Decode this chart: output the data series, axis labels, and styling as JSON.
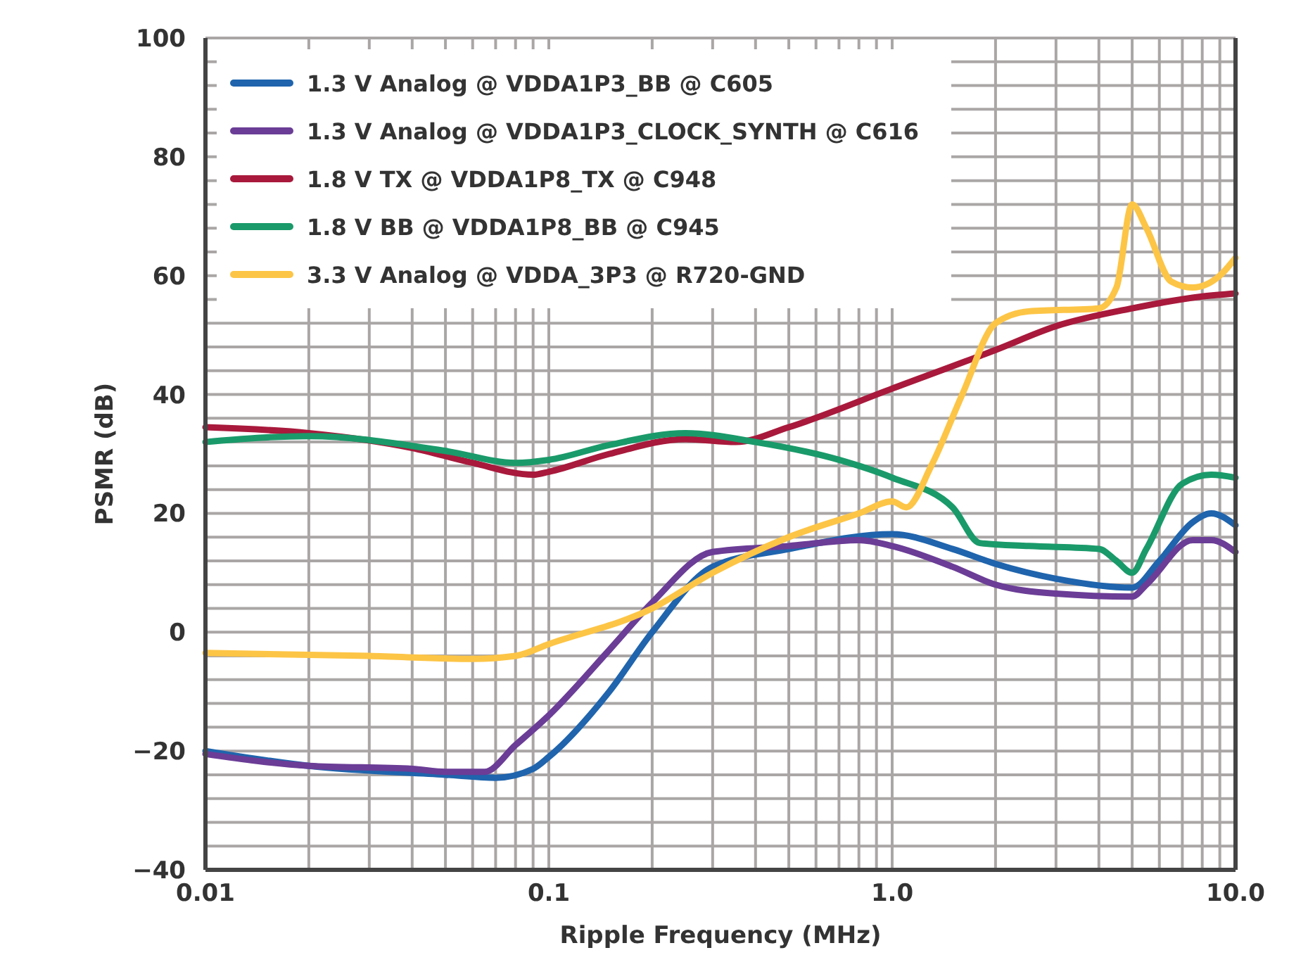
{
  "chart_data": {
    "type": "line",
    "xlabel": "Ripple Frequency (MHz)",
    "ylabel": "PSMR (dB)",
    "log": "x",
    "grid": true,
    "legend": "top left",
    "line_style": "solid",
    "marker": "none",
    "xlim": [
      0.01,
      10
    ],
    "ylim": [
      -40,
      100
    ],
    "xticks": [
      0.01,
      {
        "value": 0.02,
        "label": null
      },
      {
        "value": 0.03,
        "label": null
      },
      {
        "value": 0.04,
        "label": null
      },
      {
        "value": 0.05,
        "label": null
      },
      {
        "value": 0.06,
        "label": null
      },
      {
        "value": 0.07,
        "label": null
      },
      {
        "value": 0.08,
        "label": null
      },
      {
        "value": 0.09,
        "label": null
      },
      0.1,
      {
        "value": 0.2,
        "label": null
      },
      {
        "value": 0.3,
        "label": null
      },
      {
        "value": 0.4,
        "label": null
      },
      {
        "value": 0.5,
        "label": null
      },
      {
        "value": 0.6,
        "label": null
      },
      {
        "value": 0.7,
        "label": null
      },
      {
        "value": 0.8,
        "label": null
      },
      {
        "value": 0.9,
        "label": null
      },
      {
        "value": 1,
        "label": "1.0"
      },
      {
        "value": 2,
        "label": null
      },
      {
        "value": 3,
        "label": null
      },
      {
        "value": 4,
        "label": null
      },
      {
        "value": 5,
        "label": null
      },
      {
        "value": 6,
        "label": null
      },
      {
        "value": 7,
        "label": null
      },
      {
        "value": 8,
        "label": null
      },
      {
        "value": 9,
        "label": null
      },
      {
        "value": 10,
        "label": "10.0"
      }
    ],
    "yticks": [
      {
        "value": -40,
        "label": "−40"
      },
      {
        "value": -36,
        "label": null
      },
      {
        "value": -32,
        "label": null
      },
      {
        "value": -28,
        "label": null
      },
      {
        "value": -24,
        "label": null
      },
      {
        "value": -20,
        "label": "−20"
      },
      {
        "value": -16,
        "label": null
      },
      {
        "value": -12,
        "label": null
      },
      {
        "value": -8,
        "label": null
      },
      {
        "value": -4,
        "label": null
      },
      0,
      {
        "value": 4,
        "label": null
      },
      {
        "value": 8,
        "label": null
      },
      {
        "value": 12,
        "label": null
      },
      {
        "value": 16,
        "label": null
      },
      20,
      {
        "value": 24,
        "label": null
      },
      {
        "value": 28,
        "label": null
      },
      {
        "value": 32,
        "label": null
      },
      {
        "value": 36,
        "label": null
      },
      40,
      {
        "value": 44,
        "label": null
      },
      {
        "value": 48,
        "label": null
      },
      {
        "value": 52,
        "label": null
      },
      {
        "value": 56,
        "label": null
      },
      60,
      {
        "value": 64,
        "label": null
      },
      {
        "value": 68,
        "label": null
      },
      {
        "value": 72,
        "label": null
      },
      {
        "value": 76,
        "label": null
      },
      80,
      {
        "value": 84,
        "label": null
      },
      {
        "value": 88,
        "label": null
      },
      {
        "value": 92,
        "label": null
      },
      {
        "value": 96,
        "label": null
      },
      100
    ],
    "series": [
      {
        "name": "1.3 V Analog @ VDDA1P3_BB @ C605",
        "color": "#1f64ad",
        "x": [
          0.01,
          0.02,
          0.05,
          0.07,
          0.09,
          0.1,
          0.15,
          0.2,
          0.3,
          0.5,
          1,
          1.5,
          2,
          3,
          5,
          6,
          7.5,
          8.5,
          10
        ],
        "values": [
          -20,
          -22.5,
          -24,
          -24.5,
          -23,
          -21,
          -10,
          0,
          11,
          14,
          16.5,
          14,
          11.5,
          9,
          7.5,
          12,
          18.5,
          20,
          18
        ]
      },
      {
        "name": "1.3 V Analog @ VDDA1P3_CLOCK_SYNTH @ C616",
        "color": "#6b3d96",
        "x": [
          0.01,
          0.02,
          0.04,
          0.05,
          0.065,
          0.08,
          0.1,
          0.15,
          0.2,
          0.3,
          0.5,
          0.8,
          1,
          1.5,
          2,
          3,
          5,
          5.5,
          7.5,
          8.5,
          10
        ],
        "values": [
          -20.5,
          -22.5,
          -23,
          -23.5,
          -23.5,
          -19,
          -14,
          -3,
          5,
          13.5,
          14.5,
          15.5,
          14.5,
          11,
          8,
          6.5,
          6,
          8,
          15.5,
          15.5,
          13.5
        ]
      },
      {
        "name": "1.8 V TX @ VDDA1P8_TX @ C948",
        "color": "#a8193b",
        "x": [
          0.01,
          0.02,
          0.04,
          0.06,
          0.09,
          0.1,
          0.15,
          0.25,
          0.35,
          0.5,
          1,
          2,
          3,
          5,
          8,
          10
        ],
        "values": [
          34.5,
          33.5,
          31,
          28.5,
          26.5,
          27,
          30,
          32.5,
          32,
          34.5,
          41,
          47.5,
          51.5,
          54.5,
          56.5,
          57
        ]
      },
      {
        "name": "1.8 V BB @ VDDA1P8_BB @ C945",
        "color": "#1a9a6a",
        "x": [
          0.01,
          0.02,
          0.05,
          0.08,
          0.1,
          0.15,
          0.25,
          0.4,
          0.7,
          1,
          1.5,
          1.8,
          2.5,
          4,
          4.5,
          5,
          5.5,
          7,
          8.5,
          10
        ],
        "values": [
          32,
          33,
          30.5,
          28.5,
          29,
          31.5,
          33.5,
          32,
          29,
          26,
          21,
          15,
          14.5,
          14,
          12,
          10,
          14,
          25,
          26.5,
          26
        ]
      },
      {
        "name": "3.3 V Analog @ VDDA_3P3 @ R720-GND",
        "color": "#fdc546",
        "x": [
          0.01,
          0.03,
          0.06,
          0.08,
          0.1,
          0.2,
          0.3,
          0.5,
          0.8,
          1,
          1.1,
          1.3,
          1.6,
          2,
          2.5,
          4,
          4.5,
          5,
          5.5,
          6.5,
          7.5,
          9,
          10
        ],
        "values": [
          -3.5,
          -4,
          -4.5,
          -4,
          -2,
          4,
          10,
          16,
          20,
          22,
          21,
          28,
          40,
          52,
          54,
          54.5,
          58,
          72,
          68,
          59,
          58,
          60,
          63
        ]
      }
    ]
  }
}
